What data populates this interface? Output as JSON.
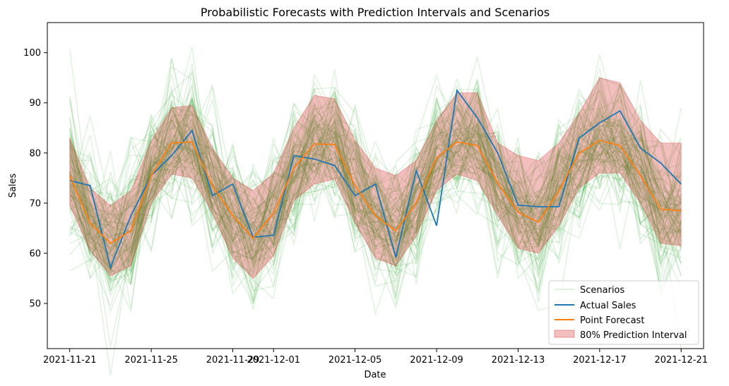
{
  "chart_data": {
    "type": "line",
    "title": "Probabilistic Forecasts with Prediction Intervals and Scenarios",
    "xlabel": "Date",
    "ylabel": "Sales",
    "ylim": [
      41,
      106
    ],
    "xlim_days": [
      -1.1,
      31.1
    ],
    "start_date": "2021-11-21",
    "x_ticks": [
      {
        "day": 0,
        "label": "2021-11-21"
      },
      {
        "day": 4,
        "label": "2021-11-25"
      },
      {
        "day": 8,
        "label": "2021-11-29"
      },
      {
        "day": 10,
        "label": "2021-12-01"
      },
      {
        "day": 14,
        "label": "2021-12-05"
      },
      {
        "day": 18,
        "label": "2021-12-09"
      },
      {
        "day": 22,
        "label": "2021-12-13"
      },
      {
        "day": 26,
        "label": "2021-12-17"
      },
      {
        "day": 30,
        "label": "2021-12-21"
      }
    ],
    "y_ticks": [
      50,
      60,
      70,
      80,
      90,
      100
    ],
    "x": [
      0,
      1,
      2,
      3,
      4,
      5,
      6,
      7,
      8,
      9,
      10,
      11,
      12,
      13,
      14,
      15,
      16,
      17,
      18,
      19,
      20,
      21,
      22,
      23,
      24,
      25,
      26,
      27,
      28,
      29,
      30
    ],
    "series": [
      {
        "name": "Actual Sales",
        "color": "#1f77b4",
        "values": [
          74.5,
          73.5,
          57.2,
          67.5,
          75.5,
          79.5,
          84.5,
          71.5,
          73.8,
          63.2,
          63.6,
          79.5,
          78.8,
          77.5,
          71.5,
          73.8,
          59.2,
          76.5,
          65.5,
          92.5,
          87.0,
          80.0,
          69.6,
          69.3,
          69.3,
          83.0,
          86.0,
          88.4,
          81.0,
          78.0,
          73.8
        ]
      },
      {
        "name": "Point Forecast",
        "color": "#ff7f0e",
        "values": [
          75.5,
          66.0,
          62.0,
          64.5,
          75.5,
          82.0,
          82.2,
          73.5,
          67.5,
          63.0,
          68.0,
          77.0,
          81.8,
          81.7,
          73.5,
          67.5,
          64.5,
          70.0,
          79.0,
          82.2,
          81.5,
          74.0,
          68.2,
          66.2,
          72.5,
          80.0,
          82.5,
          81.5,
          75.5,
          68.8,
          68.5
        ]
      }
    ],
    "interval": {
      "name": "80% Prediction Interval",
      "color": "#d62728",
      "lower": [
        69.5,
        60.5,
        55.5,
        57.5,
        70.0,
        75.8,
        75.0,
        68.0,
        59.0,
        55.0,
        59.5,
        70.5,
        73.8,
        74.8,
        66.0,
        59.0,
        57.5,
        63.5,
        72.5,
        75.8,
        74.5,
        67.5,
        61.0,
        60.0,
        65.5,
        73.0,
        76.0,
        76.0,
        70.0,
        62.0,
        61.5
      ],
      "upper": [
        83.0,
        73.0,
        69.5,
        72.5,
        82.5,
        89.0,
        89.5,
        81.0,
        75.0,
        72.5,
        76.0,
        85.0,
        91.5,
        90.8,
        82.5,
        77.0,
        75.5,
        78.5,
        86.5,
        92.0,
        92.0,
        82.0,
        79.5,
        78.5,
        82.0,
        88.0,
        95.0,
        94.0,
        86.5,
        82.0,
        82.0
      ]
    },
    "scenarios": {
      "name": "Scenarios",
      "color": "#2ca02c",
      "count": 100,
      "seed": 7,
      "spread": 6.5
    },
    "legend": [
      "Scenarios",
      "Actual Sales",
      "Point Forecast",
      "80% Prediction Interval"
    ],
    "legend_position": "lower-right",
    "grid": false
  }
}
